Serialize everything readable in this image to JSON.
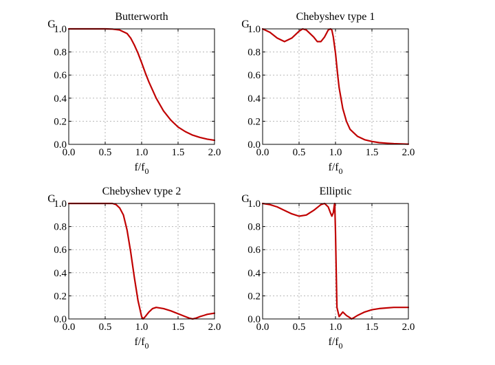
{
  "colors": {
    "curve": "#c00000",
    "grid": "#b5b5b5"
  },
  "chart_data": [
    {
      "type": "line",
      "title": "Butterworth",
      "xlabel": "f/f0",
      "ylabel": "G",
      "xlim": [
        0,
        2
      ],
      "ylim": [
        0,
        1
      ],
      "xticks": [
        "0.0",
        "0.5",
        "1.0",
        "1.5",
        "2.0"
      ],
      "yticks": [
        "0.0",
        "0.2",
        "0.4",
        "0.6",
        "0.8",
        "1.0"
      ],
      "grid": true,
      "series": [
        {
          "x": [
            0.0,
            0.2,
            0.4,
            0.5,
            0.6,
            0.7,
            0.8,
            0.85,
            0.9,
            0.95,
            1.0,
            1.05,
            1.1,
            1.2,
            1.3,
            1.4,
            1.5,
            1.6,
            1.7,
            1.8,
            1.9,
            2.0
          ],
          "y": [
            1.0,
            1.0,
            1.0,
            1.0,
            0.998,
            0.99,
            0.96,
            0.92,
            0.86,
            0.79,
            0.707,
            0.62,
            0.54,
            0.4,
            0.29,
            0.21,
            0.15,
            0.11,
            0.08,
            0.06,
            0.045,
            0.035
          ]
        }
      ]
    },
    {
      "type": "line",
      "title": "Chebyshev type 1",
      "xlabel": "f/f0",
      "ylabel": "G",
      "xlim": [
        0,
        2
      ],
      "ylim": [
        0,
        1
      ],
      "xticks": [
        "0.0",
        "0.5",
        "1.0",
        "1.5",
        "2.0"
      ],
      "yticks": [
        "0.0",
        "0.2",
        "0.4",
        "0.6",
        "0.8",
        "1.0"
      ],
      "grid": true,
      "series": [
        {
          "x": [
            0.0,
            0.1,
            0.2,
            0.3,
            0.4,
            0.5,
            0.55,
            0.6,
            0.7,
            0.75,
            0.8,
            0.85,
            0.9,
            0.93,
            0.95,
            0.97,
            1.0,
            1.03,
            1.05,
            1.1,
            1.15,
            1.2,
            1.3,
            1.4,
            1.5,
            1.6,
            1.7,
            1.8,
            1.9,
            2.0
          ],
          "y": [
            1.0,
            0.97,
            0.92,
            0.89,
            0.92,
            0.98,
            1.0,
            0.99,
            0.93,
            0.89,
            0.89,
            0.93,
            0.99,
            1.0,
            0.99,
            0.93,
            0.79,
            0.6,
            0.49,
            0.31,
            0.2,
            0.13,
            0.07,
            0.04,
            0.025,
            0.015,
            0.01,
            0.006,
            0.004,
            0.002
          ]
        }
      ]
    },
    {
      "type": "line",
      "title": "Chebyshev type 2",
      "xlabel": "f/f0",
      "ylabel": "G",
      "xlim": [
        0,
        2
      ],
      "ylim": [
        0,
        1
      ],
      "xticks": [
        "0.0",
        "0.5",
        "1.0",
        "1.5",
        "2.0"
      ],
      "yticks": [
        "0.0",
        "0.2",
        "0.4",
        "0.6",
        "0.8",
        "1.0"
      ],
      "grid": true,
      "series": [
        {
          "x": [
            0.0,
            0.2,
            0.4,
            0.5,
            0.6,
            0.65,
            0.7,
            0.75,
            0.8,
            0.85,
            0.9,
            0.95,
            1.0,
            1.02,
            1.05,
            1.1,
            1.15,
            1.2,
            1.3,
            1.4,
            1.5,
            1.6,
            1.65,
            1.7,
            1.75,
            1.8,
            1.85,
            1.9,
            1.95,
            2.0
          ],
          "y": [
            1.0,
            1.0,
            1.0,
            1.0,
            1.0,
            0.99,
            0.96,
            0.9,
            0.77,
            0.58,
            0.36,
            0.16,
            0.02,
            0.0,
            0.02,
            0.06,
            0.09,
            0.1,
            0.09,
            0.07,
            0.045,
            0.02,
            0.008,
            0.0,
            0.008,
            0.02,
            0.03,
            0.04,
            0.045,
            0.05
          ]
        }
      ]
    },
    {
      "type": "line",
      "title": "Elliptic",
      "xlabel": "f/f0",
      "ylabel": "G",
      "xlim": [
        0,
        2
      ],
      "ylim": [
        0,
        1
      ],
      "xticks": [
        "0.0",
        "0.5",
        "1.0",
        "1.5",
        "2.0"
      ],
      "yticks": [
        "0.0",
        "0.2",
        "0.4",
        "0.6",
        "0.8",
        "1.0"
      ],
      "grid": true,
      "series": [
        {
          "x": [
            0.0,
            0.1,
            0.2,
            0.3,
            0.4,
            0.5,
            0.6,
            0.7,
            0.8,
            0.85,
            0.9,
            0.93,
            0.95,
            0.97,
            0.985,
            0.99,
            1.0,
            1.01,
            1.02,
            1.05,
            1.1,
            1.15,
            1.2,
            1.22,
            1.25,
            1.3,
            1.4,
            1.5,
            1.6,
            1.7,
            1.8,
            1.9,
            2.0
          ],
          "y": [
            1.0,
            0.99,
            0.97,
            0.94,
            0.91,
            0.89,
            0.9,
            0.94,
            0.99,
            1.0,
            0.97,
            0.92,
            0.89,
            0.92,
            0.99,
            1.0,
            0.75,
            0.4,
            0.1,
            0.02,
            0.06,
            0.03,
            0.01,
            0.0,
            0.01,
            0.03,
            0.06,
            0.08,
            0.09,
            0.095,
            0.1,
            0.1,
            0.1
          ]
        }
      ]
    }
  ]
}
